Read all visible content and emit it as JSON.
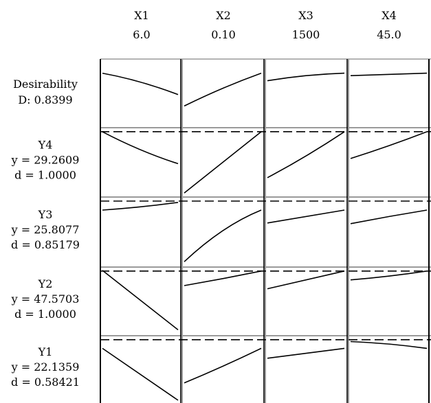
{
  "chart_data": {
    "type": "line",
    "factors": [
      {
        "name": "X1",
        "setting": "6.0"
      },
      {
        "name": "X2",
        "setting": "0.10"
      },
      {
        "name": "X3",
        "setting": "1500"
      },
      {
        "name": "X4",
        "setting": "45.0"
      }
    ],
    "rows": [
      {
        "id": "desirability",
        "label": "Desirability",
        "line1": "D: 0.8399",
        "line2": "",
        "has_target": false,
        "curves": [
          [
            [
              0,
              0.82
            ],
            [
              0.5,
              0.68
            ],
            [
              1,
              0.48
            ]
          ],
          [
            [
              0,
              0.3
            ],
            [
              0.5,
              0.58
            ],
            [
              1,
              0.82
            ]
          ],
          [
            [
              0,
              0.7
            ],
            [
              0.5,
              0.78
            ],
            [
              1,
              0.82
            ]
          ],
          [
            [
              0,
              0.78
            ],
            [
              0.5,
              0.8
            ],
            [
              1,
              0.82
            ]
          ]
        ]
      },
      {
        "id": "y4",
        "label": "Y4",
        "line1": "y = 29.2609",
        "line2": "d = 1.0000",
        "has_target": true,
        "curves": [
          [
            [
              0,
              0.98
            ],
            [
              0.5,
              0.7
            ],
            [
              1,
              0.48
            ]
          ],
          [
            [
              0,
              0.02
            ],
            [
              0.5,
              0.5
            ],
            [
              1,
              0.98
            ]
          ],
          [
            [
              0,
              0.26
            ],
            [
              0.5,
              0.6
            ],
            [
              1,
              0.98
            ]
          ],
          [
            [
              0,
              0.56
            ],
            [
              0.5,
              0.76
            ],
            [
              1,
              0.98
            ]
          ]
        ]
      },
      {
        "id": "y3",
        "label": "Y3",
        "line1": "y = 25.8077",
        "line2": "d = 0.85179",
        "has_target": true,
        "curves": [
          [
            [
              0,
              0.84
            ],
            [
              0.5,
              0.89
            ],
            [
              1,
              0.96
            ]
          ],
          [
            [
              0,
              0.04
            ],
            [
              0.5,
              0.52
            ],
            [
              1,
              0.84
            ]
          ],
          [
            [
              0,
              0.64
            ],
            [
              0.5,
              0.74
            ],
            [
              1,
              0.84
            ]
          ],
          [
            [
              0,
              0.63
            ],
            [
              0.5,
              0.74
            ],
            [
              1,
              0.84
            ]
          ]
        ]
      },
      {
        "id": "y2",
        "label": "Y2",
        "line1": "y = 47.5703",
        "line2": "d = 1.0000",
        "has_target": true,
        "curves": [
          [
            [
              0,
              0.99
            ],
            [
              0.5,
              0.52
            ],
            [
              1,
              0.05
            ]
          ],
          [
            [
              0,
              0.75
            ],
            [
              0.5,
              0.86
            ],
            [
              1,
              0.98
            ]
          ],
          [
            [
              0,
              0.7
            ],
            [
              0.5,
              0.84
            ],
            [
              1,
              0.98
            ]
          ],
          [
            [
              0,
              0.84
            ],
            [
              0.5,
              0.9
            ],
            [
              1,
              0.98
            ]
          ]
        ]
      },
      {
        "id": "y1",
        "label": "Y1",
        "line1": "y = 22.1359",
        "line2": "d = 0.58421",
        "has_target": true,
        "curves": [
          [
            [
              0,
              0.84
            ],
            [
              0.5,
              0.42
            ],
            [
              1,
              0.0
            ]
          ],
          [
            [
              0,
              0.28
            ],
            [
              0.5,
              0.55
            ],
            [
              1,
              0.84
            ]
          ],
          [
            [
              0,
              0.68
            ],
            [
              0.5,
              0.76
            ],
            [
              1,
              0.84
            ]
          ],
          [
            [
              0,
              0.95
            ],
            [
              0.5,
              0.91
            ],
            [
              1,
              0.84
            ]
          ]
        ]
      }
    ]
  }
}
